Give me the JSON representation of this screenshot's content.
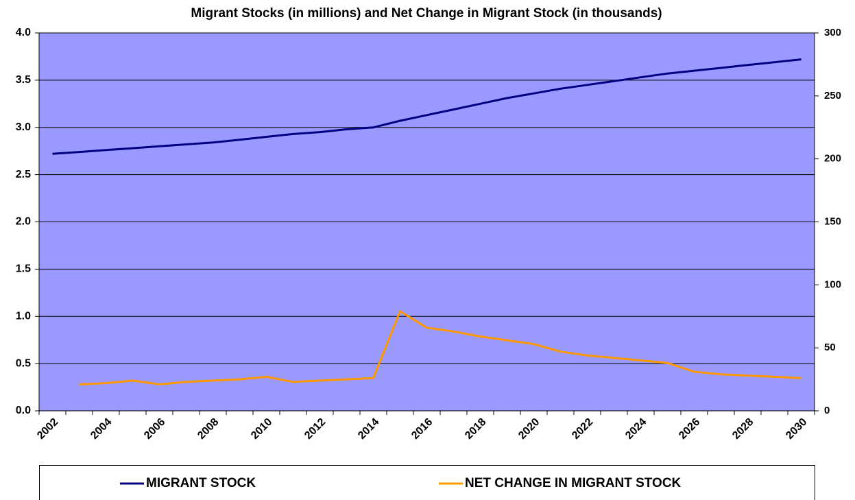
{
  "chart_data": {
    "type": "line",
    "title": "Migrant Stocks (in millions) and Net Change in Migrant Stock (in thousands)",
    "categories": [
      "2002",
      null,
      "2004",
      null,
      "2006",
      null,
      "2008",
      null,
      "2010",
      null,
      "2012",
      null,
      "2014",
      null,
      "2016",
      null,
      "2018",
      null,
      "2020",
      null,
      "2022",
      null,
      "2024",
      null,
      "2026",
      null,
      "2028",
      null,
      "2030"
    ],
    "series": [
      {
        "name": "MIGRANT STOCK",
        "color": "#000080",
        "values": [
          2.72,
          2.74,
          2.76,
          2.78,
          2.8,
          2.82,
          2.84,
          2.87,
          2.9,
          2.93,
          2.95,
          2.98,
          3.0,
          3.07,
          3.13,
          3.19,
          3.25,
          3.31,
          3.36,
          3.41,
          3.45,
          3.49,
          3.53,
          3.57,
          3.6,
          3.63,
          3.66,
          3.69,
          3.72
        ]
      },
      {
        "name": "NET CHANGE IN MIGRANT STOCK",
        "color": "#ff9900",
        "axis": "y2",
        "values": [
          null,
          21,
          22,
          24,
          21,
          23,
          24,
          25,
          27,
          23,
          24,
          25,
          26,
          79,
          66,
          63,
          59,
          56,
          53,
          47,
          44,
          42,
          40,
          38,
          31,
          29,
          28,
          27,
          26
        ]
      }
    ],
    "ylim": [
      0,
      4
    ],
    "yticks": [
      {
        "value": 0,
        "label": "0.0"
      },
      0.5,
      {
        "value": 1,
        "label": "1.0"
      },
      1.5,
      {
        "value": 2,
        "label": "2.0"
      },
      2.5,
      {
        "value": 3,
        "label": "3.0"
      },
      3.5,
      {
        "value": 4,
        "label": "4.0"
      }
    ],
    "y2lim": [
      0,
      300
    ],
    "y2ticks": [
      0,
      50,
      100,
      150,
      200,
      250,
      300
    ],
    "grid": true,
    "background": "#9999ff",
    "legend": "bottom"
  }
}
